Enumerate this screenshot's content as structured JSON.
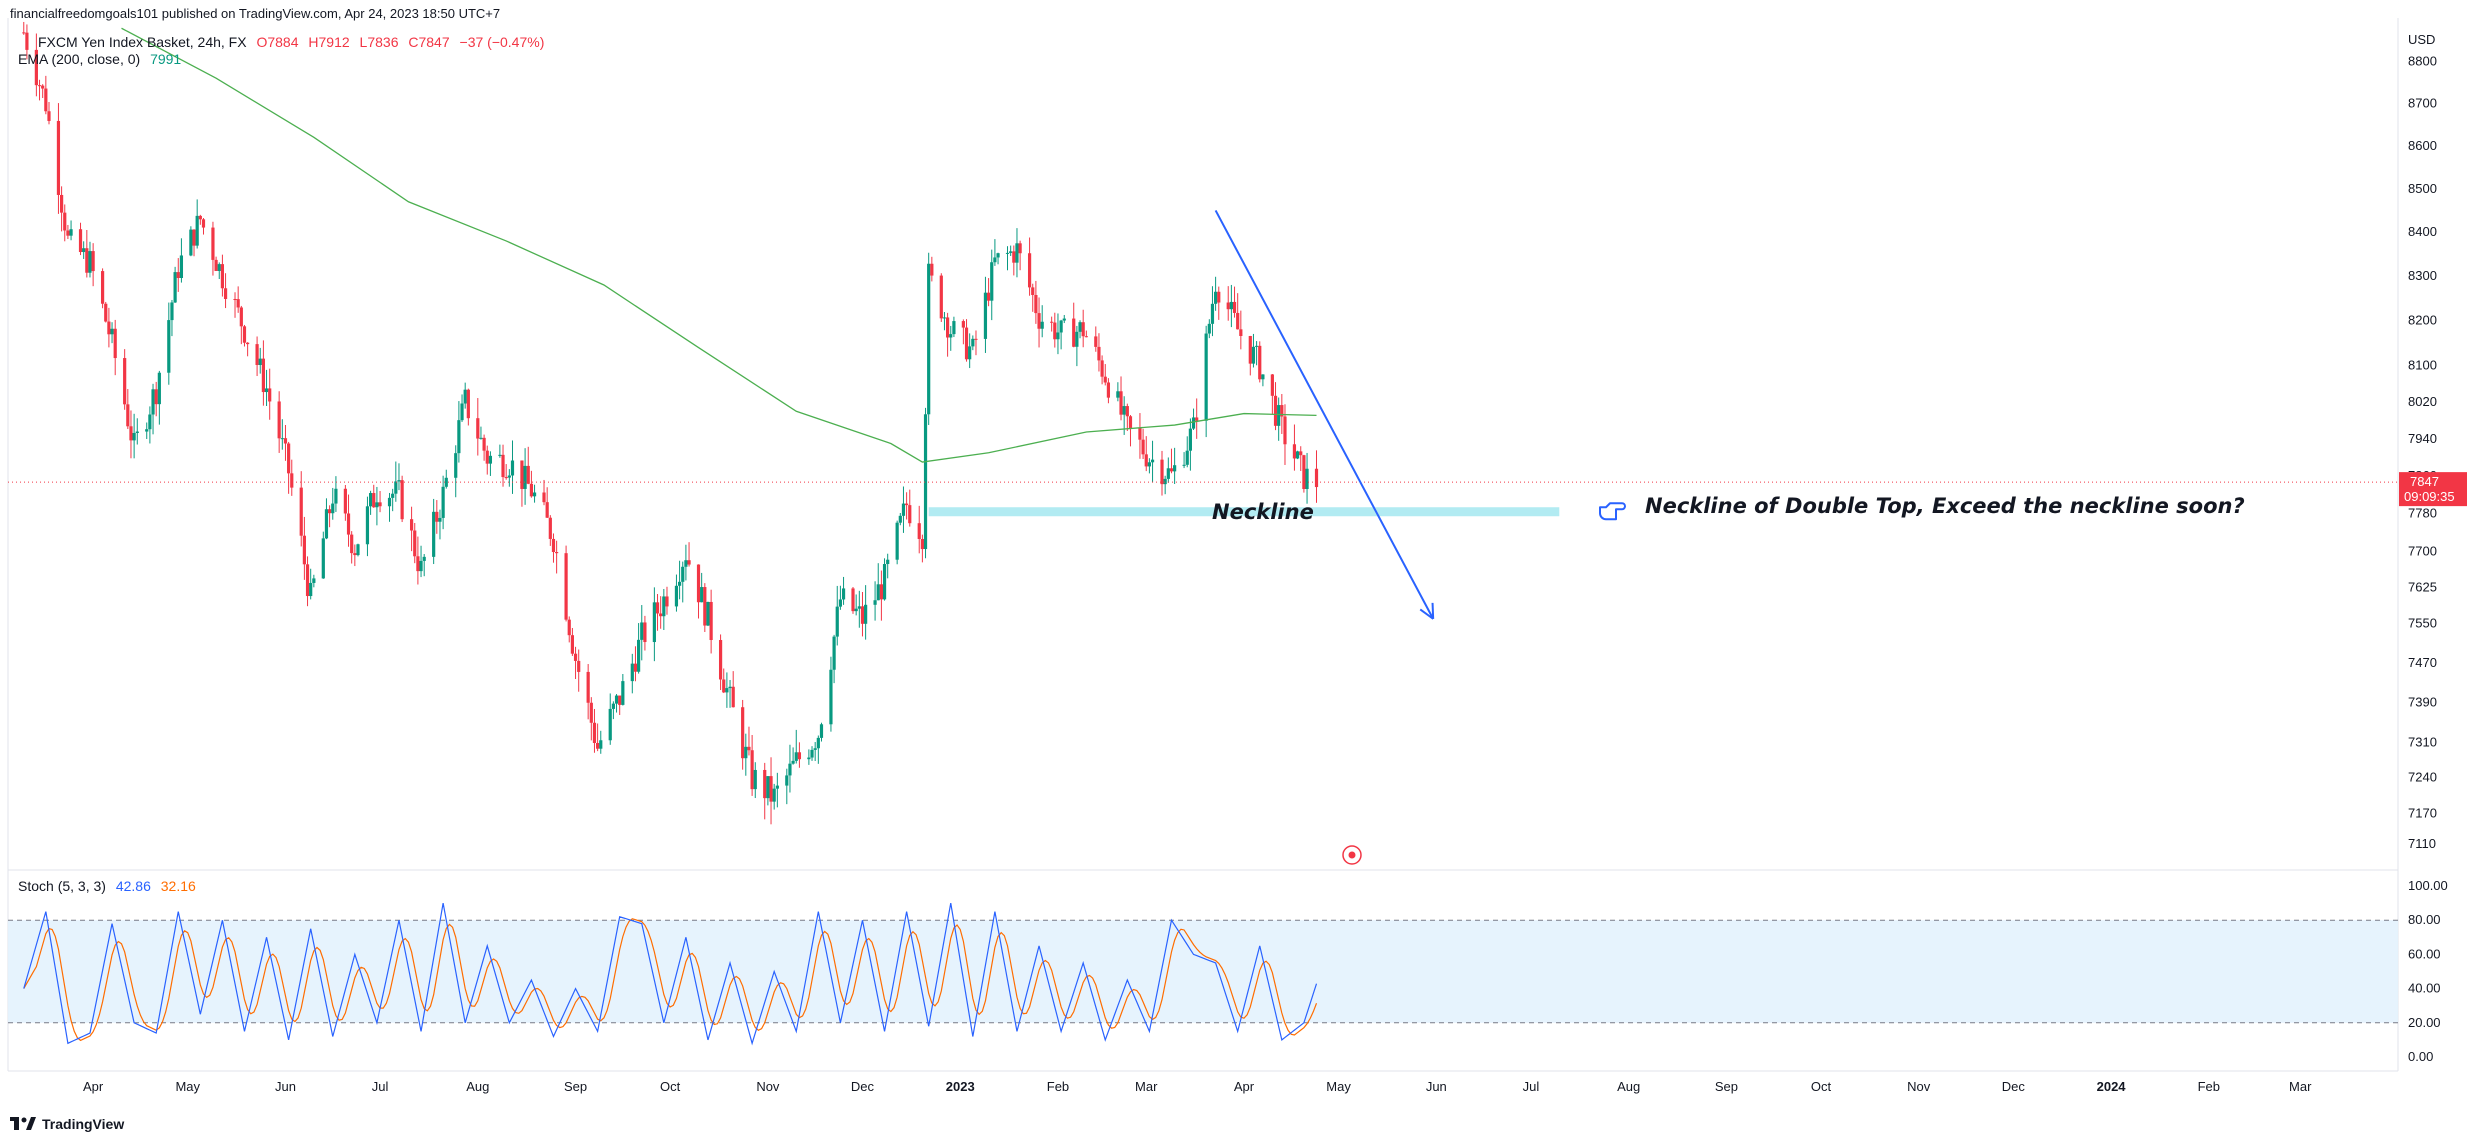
{
  "published_line": "financialfreedomgoals101 published on TradingView.com, Apr 24, 2023 18:50 UTC+7",
  "legend": {
    "symbol": "FXCM Yen Index Basket, 24h, FX",
    "open": "O7884",
    "high": "H7912",
    "low": "L7836",
    "close": "C7847",
    "change": "−37 (−0.47%)",
    "ema_label": "EMA (200, close, 0)",
    "ema_value": "7991"
  },
  "stoch_legend": {
    "label": "Stoch (5, 3, 3)",
    "k": "42.86",
    "d": "32.16"
  },
  "currency": "USD",
  "last_price": {
    "value": "7847",
    "countdown": "09:09:35"
  },
  "brand": "TradingView",
  "colors": {
    "up": "#089981",
    "down": "#f23645",
    "ema": "#4caf50",
    "stoch_k": "#2962ff",
    "stoch_d": "#ff6d00",
    "trend": "#2962ff",
    "neckline": "#b2ebf2"
  },
  "annotations": {
    "neckline_label": "Neckline",
    "note": "Neckline of Double Top, Exceed the neckline soon?",
    "note_icon": "hand-pointing-icon"
  },
  "chart_data": {
    "type": "candlestick",
    "price_axis_ticks": [
      "8800",
      "8700",
      "8600",
      "8500",
      "8400",
      "8300",
      "8200",
      "8100",
      "8020",
      "7940",
      "7860",
      "7780",
      "7700",
      "7625",
      "7550",
      "7470",
      "7390",
      "7310",
      "7240",
      "7170",
      "7110"
    ],
    "stoch_axis_ticks": [
      "100.00",
      "80.00",
      "60.00",
      "40.00",
      "20.00",
      "0.00"
    ],
    "time_axis_ticks": [
      "Apr",
      "May",
      "Jun",
      "Jul",
      "Aug",
      "Sep",
      "Oct",
      "Nov",
      "Dec",
      "2023",
      "Feb",
      "Mar",
      "Apr",
      "May",
      "Jun",
      "Jul",
      "Aug",
      "Sep",
      "Oct",
      "Nov",
      "Dec",
      "2024",
      "Feb",
      "Mar"
    ],
    "price_path": [
      [
        "2022-03-10",
        8870
      ],
      [
        "2022-03-17",
        8700
      ],
      [
        "2022-03-24",
        8380
      ],
      [
        "2022-03-31",
        8330
      ],
      [
        "2022-04-07",
        8150
      ],
      [
        "2022-04-14",
        7920
      ],
      [
        "2022-04-21",
        8050
      ],
      [
        "2022-04-28",
        8320
      ],
      [
        "2022-05-05",
        8430
      ],
      [
        "2022-05-12",
        8300
      ],
      [
        "2022-05-19",
        8180
      ],
      [
        "2022-05-26",
        8050
      ],
      [
        "2022-06-02",
        7870
      ],
      [
        "2022-06-09",
        7600
      ],
      [
        "2022-06-16",
        7820
      ],
      [
        "2022-06-23",
        7710
      ],
      [
        "2022-06-30",
        7830
      ],
      [
        "2022-07-07",
        7820
      ],
      [
        "2022-07-14",
        7660
      ],
      [
        "2022-07-21",
        7820
      ],
      [
        "2022-07-28",
        8020
      ],
      [
        "2022-08-04",
        7900
      ],
      [
        "2022-08-11",
        7890
      ],
      [
        "2022-08-18",
        7830
      ],
      [
        "2022-08-25",
        7730
      ],
      [
        "2022-09-01",
        7480
      ],
      [
        "2022-09-08",
        7300
      ],
      [
        "2022-09-15",
        7400
      ],
      [
        "2022-09-22",
        7520
      ],
      [
        "2022-09-29",
        7600
      ],
      [
        "2022-10-06",
        7700
      ],
      [
        "2022-10-13",
        7560
      ],
      [
        "2022-10-20",
        7390
      ],
      [
        "2022-10-27",
        7240
      ],
      [
        "2022-11-03",
        7200
      ],
      [
        "2022-11-10",
        7270
      ],
      [
        "2022-11-17",
        7330
      ],
      [
        "2022-11-24",
        7600
      ],
      [
        "2022-12-01",
        7560
      ],
      [
        "2022-12-08",
        7640
      ],
      [
        "2022-12-15",
        7800
      ],
      [
        "2022-12-20",
        7740
      ],
      [
        "2022-12-22",
        8300
      ],
      [
        "2022-12-29",
        8180
      ],
      [
        "2023-01-05",
        8130
      ],
      [
        "2023-01-12",
        8330
      ],
      [
        "2023-01-19",
        8360
      ],
      [
        "2023-01-26",
        8210
      ],
      [
        "2023-02-02",
        8170
      ],
      [
        "2023-02-09",
        8180
      ],
      [
        "2023-02-16",
        8080
      ],
      [
        "2023-02-23",
        7960
      ],
      [
        "2023-03-02",
        7900
      ],
      [
        "2023-03-09",
        7860
      ],
      [
        "2023-03-16",
        7960
      ],
      [
        "2023-03-23",
        8290
      ],
      [
        "2023-03-30",
        8180
      ],
      [
        "2023-04-06",
        8100
      ],
      [
        "2023-04-13",
        7960
      ],
      [
        "2023-04-20",
        7860
      ],
      [
        "2023-04-24",
        7847
      ]
    ],
    "ema_path": [
      [
        "2022-04-10",
        8880
      ],
      [
        "2022-05-10",
        8760
      ],
      [
        "2022-06-10",
        8620
      ],
      [
        "2022-07-10",
        8470
      ],
      [
        "2022-08-10",
        8380
      ],
      [
        "2022-09-10",
        8280
      ],
      [
        "2022-10-10",
        8140
      ],
      [
        "2022-11-10",
        8000
      ],
      [
        "2022-12-10",
        7930
      ],
      [
        "2022-12-20",
        7890
      ],
      [
        "2023-01-10",
        7910
      ],
      [
        "2023-02-10",
        7955
      ],
      [
        "2023-03-10",
        7970
      ],
      [
        "2023-04-01",
        7995
      ],
      [
        "2023-04-24",
        7991
      ]
    ],
    "trendline": {
      "from": [
        "2023-03-23",
        8450
      ],
      "to": [
        "2023-05-31",
        7560
      ]
    },
    "neckline": {
      "from": [
        "2022-12-22",
        7785
      ],
      "to": [
        "2023-07-10",
        7785
      ]
    },
    "stoch_k": [
      [
        "2022-03-10",
        40
      ],
      [
        "2022-03-17",
        85
      ],
      [
        "2022-03-24",
        8
      ],
      [
        "2022-03-31",
        14
      ],
      [
        "2022-04-07",
        78
      ],
      [
        "2022-04-14",
        20
      ],
      [
        "2022-04-21",
        14
      ],
      [
        "2022-04-28",
        85
      ],
      [
        "2022-05-05",
        25
      ],
      [
        "2022-05-12",
        80
      ],
      [
        "2022-05-19",
        15
      ],
      [
        "2022-05-26",
        70
      ],
      [
        "2022-06-02",
        10
      ],
      [
        "2022-06-09",
        75
      ],
      [
        "2022-06-16",
        12
      ],
      [
        "2022-06-23",
        60
      ],
      [
        "2022-06-30",
        20
      ],
      [
        "2022-07-07",
        80
      ],
      [
        "2022-07-14",
        15
      ],
      [
        "2022-07-21",
        90
      ],
      [
        "2022-07-28",
        20
      ],
      [
        "2022-08-04",
        65
      ],
      [
        "2022-08-11",
        20
      ],
      [
        "2022-08-18",
        45
      ],
      [
        "2022-08-25",
        12
      ],
      [
        "2022-09-01",
        40
      ],
      [
        "2022-09-08",
        15
      ],
      [
        "2022-09-15",
        82
      ],
      [
        "2022-09-22",
        78
      ],
      [
        "2022-09-29",
        20
      ],
      [
        "2022-10-06",
        70
      ],
      [
        "2022-10-13",
        10
      ],
      [
        "2022-10-20",
        55
      ],
      [
        "2022-10-27",
        8
      ],
      [
        "2022-11-03",
        50
      ],
      [
        "2022-11-10",
        15
      ],
      [
        "2022-11-17",
        85
      ],
      [
        "2022-11-24",
        20
      ],
      [
        "2022-12-01",
        80
      ],
      [
        "2022-12-08",
        15
      ],
      [
        "2022-12-15",
        85
      ],
      [
        "2022-12-22",
        18
      ],
      [
        "2022-12-29",
        90
      ],
      [
        "2023-01-05",
        12
      ],
      [
        "2023-01-12",
        85
      ],
      [
        "2023-01-19",
        15
      ],
      [
        "2023-01-26",
        65
      ],
      [
        "2023-02-02",
        15
      ],
      [
        "2023-02-09",
        55
      ],
      [
        "2023-02-16",
        10
      ],
      [
        "2023-02-23",
        45
      ],
      [
        "2023-03-02",
        15
      ],
      [
        "2023-03-09",
        80
      ],
      [
        "2023-03-16",
        60
      ],
      [
        "2023-03-23",
        55
      ],
      [
        "2023-03-30",
        15
      ],
      [
        "2023-04-06",
        65
      ],
      [
        "2023-04-13",
        10
      ],
      [
        "2023-04-20",
        20
      ],
      [
        "2023-04-24",
        42.86
      ]
    ],
    "ylim": [
      7060,
      8900
    ],
    "stoch_ylim": [
      0,
      100
    ],
    "stoch_band": [
      20,
      80
    ],
    "xlim": [
      "2022-03-05",
      "2024-04-01"
    ],
    "grid": false,
    "last_close": 7847
  }
}
